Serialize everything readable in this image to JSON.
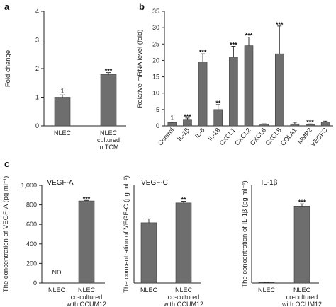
{
  "panels": [
    {
      "id": "a",
      "label": "a"
    },
    {
      "id": "b",
      "label": "b"
    },
    {
      "id": "c",
      "label": "c"
    }
  ],
  "chart_data": [
    {
      "panel": "a",
      "type": "bar",
      "title": "",
      "ylabel": "Fold change",
      "ylim": [
        0,
        4
      ],
      "yticks": [
        "0",
        "1",
        "2",
        "3",
        "4"
      ],
      "categories": [
        [
          "NLEC"
        ],
        [
          "NLEC",
          "cultured",
          "in TCM"
        ]
      ],
      "values": [
        1.0,
        1.8
      ],
      "errors": [
        0.08,
        0.06
      ],
      "annotations": [
        "1",
        "***"
      ]
    },
    {
      "panel": "b",
      "type": "bar",
      "title": "",
      "ylabel": "Relative mRNA level (fold)",
      "ylim": [
        0,
        35
      ],
      "yticks": [
        "0",
        "5",
        "10",
        "15",
        "20",
        "25",
        "30",
        "35"
      ],
      "categories": [
        "Control",
        "IL-1β",
        "IL-6",
        "IL-18",
        "CXCL1",
        "CXCL2",
        "CXCL6",
        "CXCL8",
        "COLA1",
        "MMP2",
        "VEGFC"
      ],
      "values": [
        1.0,
        2.0,
        19.5,
        5.0,
        21.0,
        24.5,
        0.5,
        22.0,
        0.6,
        0.4,
        1.2
      ],
      "errors": [
        0.15,
        0.4,
        2.5,
        1.5,
        3.3,
        2.6,
        0.12,
        8.5,
        0.5,
        0.2,
        0.25
      ],
      "annotations": [
        "1",
        "***",
        "***",
        "**",
        "***",
        "***",
        "",
        "***",
        "",
        "***",
        ""
      ]
    },
    {
      "panel": "c",
      "type": "bar",
      "title": "VEGF-A",
      "ylabel": "The concentration of VEGF-A (pg ml⁻¹)",
      "ylim": [
        0,
        1000
      ],
      "yticks": [
        "0",
        "200",
        "400",
        "600",
        "800",
        "1,000"
      ],
      "categories": [
        [
          "NLEC"
        ],
        [
          "NLEC",
          "co-cultured",
          "with OCUM12"
        ]
      ],
      "values": [
        0,
        840
      ],
      "errors": [
        0,
        6
      ],
      "annotations": [
        "ND",
        "***"
      ]
    },
    {
      "panel": "c",
      "type": "bar",
      "title": "VEGF-C",
      "ylabel": "The concentration of VEGF-C (pg ml⁻¹)",
      "ylim": [
        0,
        300
      ],
      "yticks": [],
      "categories": [
        [
          "NLEC"
        ],
        [
          "NLEC",
          "co-cultured",
          "with OCUM12"
        ]
      ],
      "values": [
        185,
        246
      ],
      "errors": [
        12,
        5
      ],
      "annotations": [
        "",
        "**"
      ]
    },
    {
      "panel": "c",
      "type": "bar",
      "title": "IL-1β",
      "ylabel": "The concentration of IL-1β (pg ml⁻¹)",
      "ylim": [
        0,
        400
      ],
      "yticks": [],
      "categories": [
        [
          "NLEC"
        ],
        [
          "NLEC",
          "co-cultured",
          "with OCUM12"
        ]
      ],
      "values": [
        2,
        315
      ],
      "errors": [
        0.5,
        9
      ],
      "annotations": [
        "",
        "***"
      ]
    }
  ]
}
